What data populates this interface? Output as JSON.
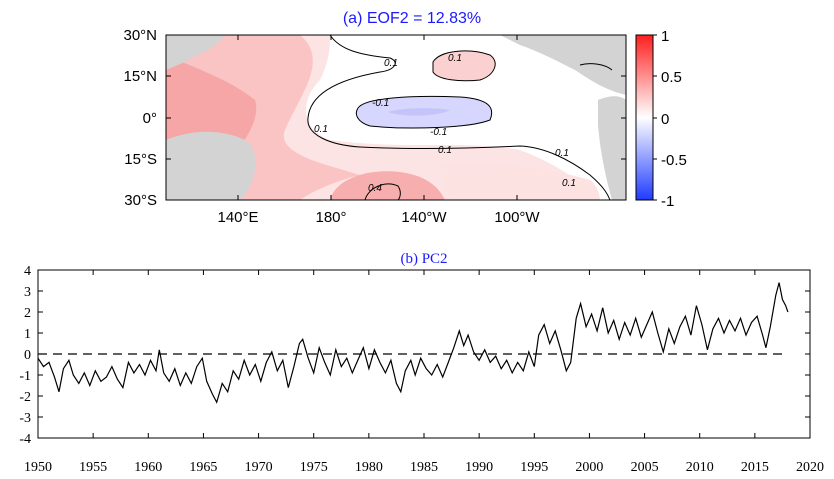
{
  "chart_data": [
    {
      "type": "heatmap",
      "title": "(a) EOF2 = 12.83%",
      "x_ticks": [
        "140°E",
        "180°",
        "140°W",
        "100°W"
      ],
      "y_ticks": [
        "30°N",
        "15°N",
        "0°",
        "15°S",
        "30°S"
      ],
      "colorbar": {
        "ticks": [
          "1",
          "0.5",
          "0",
          "-0.5",
          "-1"
        ],
        "range": [
          -1,
          1
        ],
        "colors": {
          "max": "#ff1f1f",
          "mid": "#ffffff",
          "min": "#1f3bff"
        }
      },
      "contour_labels": [
        "0.1",
        "0.1",
        "0.1",
        "0.1",
        "0.1",
        "0.1",
        "-0.1",
        "-0.1",
        "0.4"
      ],
      "land_color": "#d3d3d3"
    },
    {
      "type": "line",
      "title": "(b) PC2",
      "xlim": [
        1950,
        2020
      ],
      "ylim": [
        -4,
        4
      ],
      "x_ticks": [
        "1950",
        "1955",
        "1960",
        "1965",
        "1970",
        "1975",
        "1980",
        "1985",
        "1990",
        "1995",
        "2000",
        "2005",
        "2010",
        "2015",
        "2020"
      ],
      "y_ticks": [
        "4",
        "3",
        "2",
        "1",
        "0",
        "-1",
        "-2",
        "-3",
        "-4"
      ],
      "reference_line": {
        "y": 0,
        "style": "dashed",
        "x_range": [
          1950,
          2018
        ]
      },
      "series": [
        {
          "points": [
            [
              1950.0,
              -0.2
            ],
            [
              1950.5,
              -0.6
            ],
            [
              1951.0,
              -0.4
            ],
            [
              1951.5,
              -1.1
            ],
            [
              1951.9,
              -1.8
            ],
            [
              1952.3,
              -0.7
            ],
            [
              1952.8,
              -0.3
            ],
            [
              1953.2,
              -1.0
            ],
            [
              1953.7,
              -1.4
            ],
            [
              1954.2,
              -0.9
            ],
            [
              1954.7,
              -1.5
            ],
            [
              1955.2,
              -0.8
            ],
            [
              1955.7,
              -1.3
            ],
            [
              1956.2,
              -1.1
            ],
            [
              1956.7,
              -0.6
            ],
            [
              1957.2,
              -1.2
            ],
            [
              1957.7,
              -1.6
            ],
            [
              1958.2,
              -0.4
            ],
            [
              1958.7,
              -0.9
            ],
            [
              1959.2,
              -0.5
            ],
            [
              1959.7,
              -1.0
            ],
            [
              1960.2,
              -0.3
            ],
            [
              1960.7,
              -0.8
            ],
            [
              1961.0,
              0.2
            ],
            [
              1961.4,
              -0.9
            ],
            [
              1961.9,
              -1.3
            ],
            [
              1962.4,
              -0.7
            ],
            [
              1962.9,
              -1.5
            ],
            [
              1963.4,
              -0.9
            ],
            [
              1963.9,
              -1.4
            ],
            [
              1964.4,
              -0.6
            ],
            [
              1964.9,
              -0.2
            ],
            [
              1965.3,
              -1.3
            ],
            [
              1965.8,
              -1.9
            ],
            [
              1966.2,
              -2.3
            ],
            [
              1966.7,
              -1.4
            ],
            [
              1967.2,
              -1.8
            ],
            [
              1967.7,
              -0.8
            ],
            [
              1968.2,
              -1.2
            ],
            [
              1968.7,
              -0.3
            ],
            [
              1969.2,
              -1.0
            ],
            [
              1969.7,
              -0.5
            ],
            [
              1970.2,
              -1.3
            ],
            [
              1970.7,
              -0.4
            ],
            [
              1971.2,
              0.1
            ],
            [
              1971.7,
              -0.8
            ],
            [
              1972.2,
              -0.3
            ],
            [
              1972.7,
              -1.6
            ],
            [
              1973.2,
              -0.6
            ],
            [
              1973.7,
              0.5
            ],
            [
              1974.0,
              0.7
            ],
            [
              1974.5,
              -0.2
            ],
            [
              1975.0,
              -0.9
            ],
            [
              1975.5,
              0.3
            ],
            [
              1976.0,
              -0.4
            ],
            [
              1976.5,
              -1.0
            ],
            [
              1977.0,
              0.2
            ],
            [
              1977.5,
              -0.6
            ],
            [
              1978.0,
              -0.2
            ],
            [
              1978.5,
              -0.9
            ],
            [
              1979.0,
              -0.3
            ],
            [
              1979.5,
              0.3
            ],
            [
              1980.0,
              -0.7
            ],
            [
              1980.5,
              0.2
            ],
            [
              1981.0,
              -0.4
            ],
            [
              1981.5,
              -0.9
            ],
            [
              1982.0,
              -0.3
            ],
            [
              1982.5,
              -1.4
            ],
            [
              1982.9,
              -1.8
            ],
            [
              1983.3,
              -0.8
            ],
            [
              1983.8,
              -0.3
            ],
            [
              1984.2,
              -1.0
            ],
            [
              1984.7,
              -0.2
            ],
            [
              1985.2,
              -0.7
            ],
            [
              1985.7,
              -1.0
            ],
            [
              1986.2,
              -0.5
            ],
            [
              1986.7,
              -1.1
            ],
            [
              1987.2,
              -0.4
            ],
            [
              1987.7,
              0.3
            ],
            [
              1988.2,
              1.1
            ],
            [
              1988.6,
              0.4
            ],
            [
              1989.0,
              0.9
            ],
            [
              1989.5,
              0.1
            ],
            [
              1990.0,
              -0.3
            ],
            [
              1990.5,
              0.2
            ],
            [
              1991.0,
              -0.4
            ],
            [
              1991.5,
              -0.1
            ],
            [
              1992.0,
              -0.7
            ],
            [
              1992.5,
              -0.3
            ],
            [
              1993.0,
              -0.9
            ],
            [
              1993.5,
              -0.4
            ],
            [
              1994.0,
              -0.8
            ],
            [
              1994.5,
              0.1
            ],
            [
              1995.0,
              -0.6
            ],
            [
              1995.4,
              0.9
            ],
            [
              1995.9,
              1.4
            ],
            [
              1996.4,
              0.5
            ],
            [
              1996.9,
              1.1
            ],
            [
              1997.4,
              0.2
            ],
            [
              1997.9,
              -0.8
            ],
            [
              1998.3,
              -0.4
            ],
            [
              1998.8,
              1.7
            ],
            [
              1999.2,
              2.4
            ],
            [
              1999.7,
              1.3
            ],
            [
              2000.2,
              1.9
            ],
            [
              2000.7,
              1.1
            ],
            [
              2001.2,
              2.2
            ],
            [
              2001.7,
              1.0
            ],
            [
              2002.2,
              1.6
            ],
            [
              2002.7,
              0.7
            ],
            [
              2003.2,
              1.5
            ],
            [
              2003.7,
              0.9
            ],
            [
              2004.2,
              1.7
            ],
            [
              2004.7,
              0.8
            ],
            [
              2005.2,
              1.4
            ],
            [
              2005.7,
              2.0
            ],
            [
              2006.2,
              1.0
            ],
            [
              2006.7,
              0.1
            ],
            [
              2007.2,
              1.2
            ],
            [
              2007.7,
              0.5
            ],
            [
              2008.2,
              1.3
            ],
            [
              2008.7,
              1.8
            ],
            [
              2009.2,
              0.9
            ],
            [
              2009.7,
              2.3
            ],
            [
              2010.2,
              1.4
            ],
            [
              2010.7,
              0.2
            ],
            [
              2011.2,
              1.2
            ],
            [
              2011.7,
              1.7
            ],
            [
              2012.2,
              1.0
            ],
            [
              2012.7,
              1.6
            ],
            [
              2013.2,
              1.1
            ],
            [
              2013.7,
              1.7
            ],
            [
              2014.2,
              0.9
            ],
            [
              2014.7,
              1.5
            ],
            [
              2015.2,
              1.8
            ],
            [
              2015.7,
              0.9
            ],
            [
              2016.0,
              0.3
            ],
            [
              2016.4,
              1.3
            ],
            [
              2016.9,
              2.8
            ],
            [
              2017.2,
              3.4
            ],
            [
              2017.5,
              2.6
            ],
            [
              2017.8,
              2.3
            ],
            [
              2018.0,
              2.0
            ]
          ]
        }
      ]
    }
  ]
}
